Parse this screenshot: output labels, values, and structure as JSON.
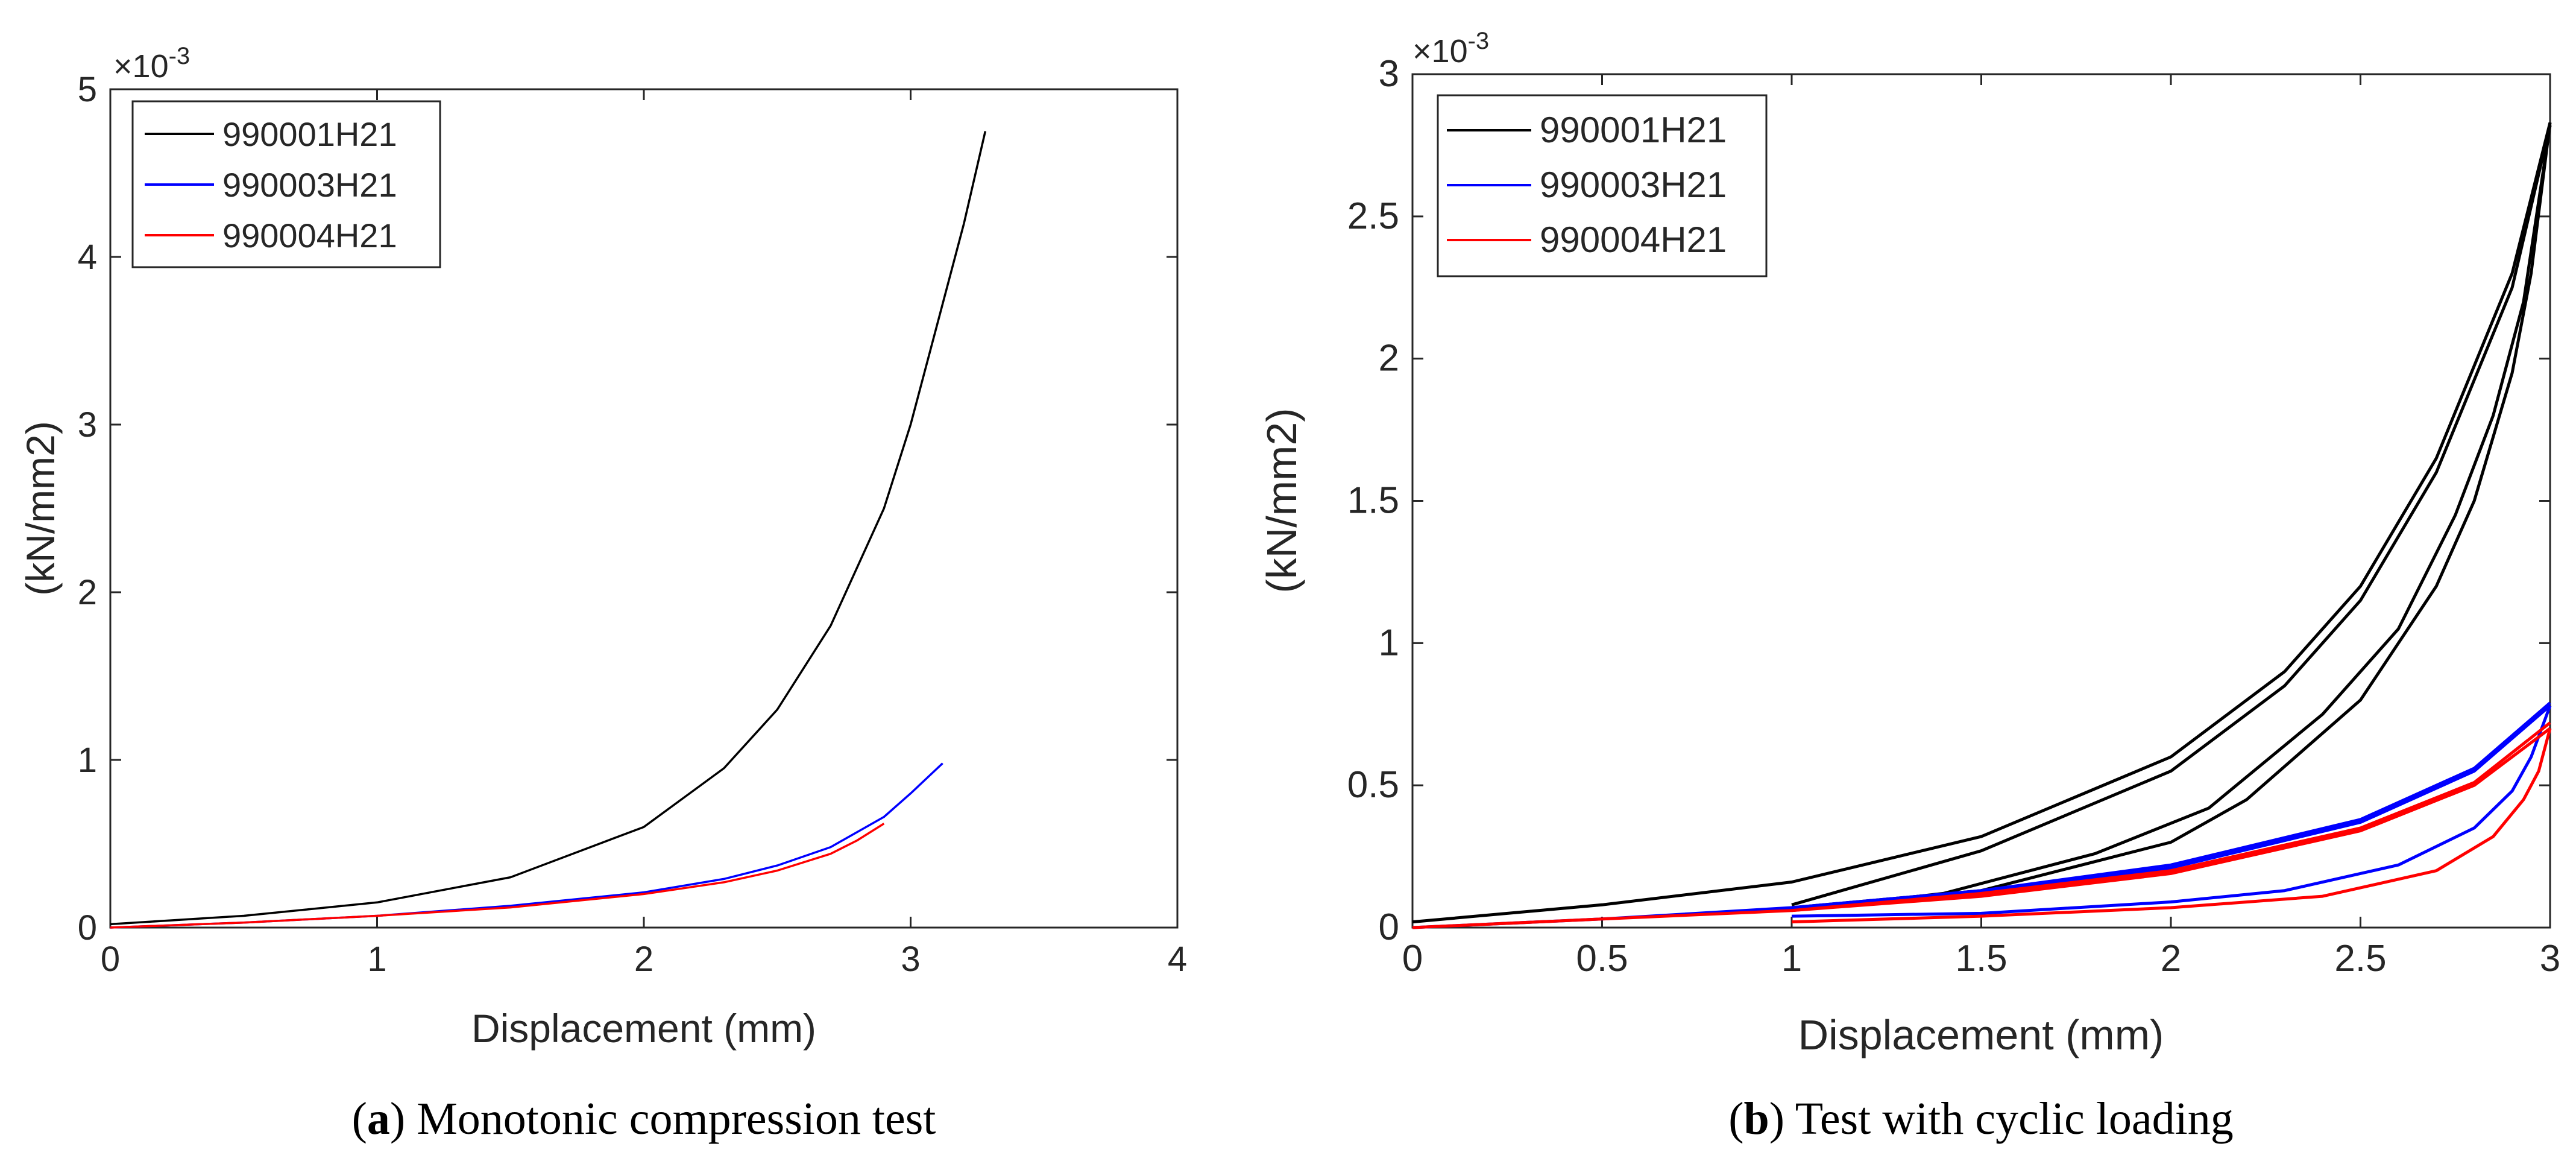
{
  "chart_data": [
    {
      "type": "line",
      "panel": "a",
      "caption_letter": "a",
      "caption_text": " Monotonic compression test",
      "xlabel": "Displacement (mm)",
      "ylabel": "(kN/mm2)",
      "xlim": [
        0,
        4
      ],
      "ylim": [
        0,
        5
      ],
      "xticks": [
        "0",
        "1",
        "2",
        "3",
        "4"
      ],
      "yticks": [
        "0",
        "1",
        "2",
        "3",
        "4",
        "5"
      ],
      "y_multiplier": "×10",
      "y_exponent": "-3",
      "legend_position": "top-left",
      "series": [
        {
          "name": "990001H21",
          "color": "#000000",
          "x": [
            0,
            0.5,
            1.0,
            1.5,
            2.0,
            2.3,
            2.5,
            2.7,
            2.9,
            3.0,
            3.1,
            3.2,
            3.28
          ],
          "y": [
            0.02,
            0.07,
            0.15,
            0.3,
            0.6,
            0.95,
            1.3,
            1.8,
            2.5,
            3.0,
            3.6,
            4.2,
            4.75
          ]
        },
        {
          "name": "990003H21",
          "color": "#0000ff",
          "x": [
            0,
            0.5,
            1.0,
            1.5,
            2.0,
            2.3,
            2.5,
            2.7,
            2.9,
            3.0,
            3.12
          ],
          "y": [
            0.0,
            0.03,
            0.07,
            0.13,
            0.21,
            0.29,
            0.37,
            0.48,
            0.66,
            0.8,
            0.98
          ]
        },
        {
          "name": "990004H21",
          "color": "#ff0000",
          "x": [
            0,
            0.5,
            1.0,
            1.5,
            2.0,
            2.3,
            2.5,
            2.7,
            2.8,
            2.9
          ],
          "y": [
            0.0,
            0.03,
            0.07,
            0.12,
            0.2,
            0.27,
            0.34,
            0.44,
            0.52,
            0.62
          ]
        }
      ]
    },
    {
      "type": "line",
      "panel": "b",
      "caption_letter": "b",
      "caption_text": " Test with cyclic loading",
      "xlabel": "Displacement (mm)",
      "ylabel": "(kN/mm2)",
      "xlim": [
        0,
        3
      ],
      "ylim": [
        0,
        3
      ],
      "xticks": [
        "0",
        "0.5",
        "1",
        "1.5",
        "2",
        "2.5",
        "3"
      ],
      "yticks": [
        "0",
        "0.5",
        "1",
        "1.5",
        "2",
        "2.5",
        "3"
      ],
      "y_multiplier": "×10",
      "y_exponent": "-3",
      "legend_position": "top-left",
      "series": [
        {
          "name": "990001H21",
          "color": "#000000",
          "paths": [
            {
              "x": [
                0,
                0.5,
                1.0,
                1.5,
                2.0,
                2.3,
                2.5,
                2.7,
                2.9,
                3.0
              ],
              "y": [
                0.02,
                0.08,
                0.16,
                0.32,
                0.6,
                0.9,
                1.2,
                1.65,
                2.3,
                2.83
              ]
            },
            {
              "x": [
                3.0,
                2.95,
                2.9,
                2.8,
                2.7,
                2.5,
                2.2,
                2.0,
                1.5,
                1.0
              ],
              "y": [
                2.83,
                2.3,
                1.95,
                1.5,
                1.2,
                0.8,
                0.45,
                0.3,
                0.13,
                0.07
              ]
            },
            {
              "x": [
                1.0,
                1.5,
                2.0,
                2.3,
                2.5,
                2.7,
                2.9,
                3.0
              ],
              "y": [
                0.08,
                0.27,
                0.55,
                0.85,
                1.15,
                1.6,
                2.25,
                2.82
              ]
            },
            {
              "x": [
                3.0,
                2.93,
                2.85,
                2.75,
                2.6,
                2.4,
                2.1,
                1.8,
                1.4,
                1.0
              ],
              "y": [
                2.82,
                2.2,
                1.8,
                1.45,
                1.05,
                0.75,
                0.42,
                0.26,
                0.12,
                0.06
              ]
            }
          ]
        },
        {
          "name": "990003H21",
          "color": "#0000ff",
          "paths": [
            {
              "x": [
                0,
                0.5,
                1.0,
                1.5,
                2.0,
                2.5,
                2.8,
                3.0
              ],
              "y": [
                0.0,
                0.03,
                0.07,
                0.12,
                0.21,
                0.37,
                0.55,
                0.78
              ]
            },
            {
              "x": [
                3.0,
                2.95,
                2.9,
                2.8,
                2.6,
                2.3,
                2.0,
                1.5,
                1.0
              ],
              "y": [
                0.78,
                0.6,
                0.48,
                0.35,
                0.22,
                0.13,
                0.09,
                0.05,
                0.04
              ]
            },
            {
              "x": [
                1.0,
                1.5,
                2.0,
                2.5,
                2.8,
                3.0
              ],
              "y": [
                0.07,
                0.13,
                0.22,
                0.38,
                0.56,
                0.79
              ]
            }
          ]
        },
        {
          "name": "990004H21",
          "color": "#ff0000",
          "paths": [
            {
              "x": [
                0,
                0.5,
                1.0,
                1.5,
                2.0,
                2.5,
                2.8,
                3.0
              ],
              "y": [
                0.0,
                0.03,
                0.06,
                0.11,
                0.19,
                0.34,
                0.5,
                0.7
              ]
            },
            {
              "x": [
                3.0,
                2.97,
                2.93,
                2.85,
                2.7,
                2.4,
                2.0,
                1.5,
                1.0
              ],
              "y": [
                0.7,
                0.55,
                0.45,
                0.32,
                0.2,
                0.11,
                0.07,
                0.04,
                0.02
              ]
            },
            {
              "x": [
                1.0,
                1.5,
                2.0,
                2.5,
                2.8,
                3.0
              ],
              "y": [
                0.06,
                0.12,
                0.2,
                0.35,
                0.51,
                0.72
              ]
            }
          ]
        }
      ]
    }
  ]
}
